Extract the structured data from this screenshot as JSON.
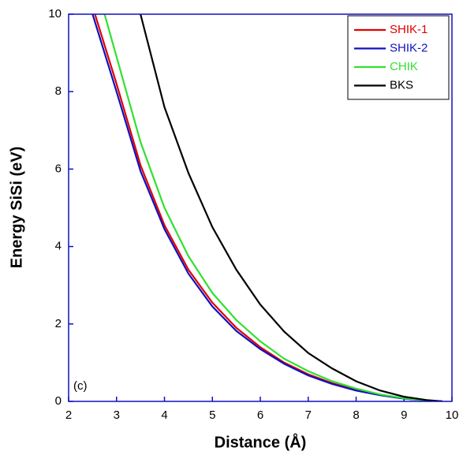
{
  "chart_data": {
    "type": "line",
    "xlabel": "Distance (Å)",
    "ylabel": "Energy SiSi (eV)",
    "annotation": "(c)",
    "xlim": [
      2,
      10
    ],
    "xticks": [
      2,
      3,
      4,
      5,
      6,
      7,
      8,
      9,
      10
    ],
    "ylim": [
      0,
      10
    ],
    "yticks": [
      0,
      2,
      4,
      6,
      8,
      10
    ],
    "legend": "upper right",
    "series": [
      {
        "name": "SHIK-1",
        "color": "#e00000",
        "x": [
          2.55,
          3,
          3.5,
          4,
          4.5,
          5,
          5.5,
          6,
          6.5,
          7,
          7.5,
          8,
          8.5,
          9,
          9.5,
          9.8
        ],
        "values": [
          10,
          8.2,
          6.1,
          4.55,
          3.4,
          2.55,
          1.9,
          1.4,
          1.0,
          0.7,
          0.47,
          0.3,
          0.17,
          0.08,
          0.02,
          0
        ]
      },
      {
        "name": "SHIK-2",
        "color": "#1010c0",
        "x": [
          2.5,
          3,
          3.5,
          4,
          4.5,
          5,
          5.5,
          6,
          6.5,
          7,
          7.5,
          8,
          8.5,
          9,
          9.5,
          9.8
        ],
        "values": [
          10,
          8.0,
          5.95,
          4.45,
          3.3,
          2.45,
          1.82,
          1.35,
          0.97,
          0.67,
          0.45,
          0.28,
          0.16,
          0.07,
          0.02,
          0
        ]
      },
      {
        "name": "CHIK",
        "color": "#30e030",
        "x": [
          2.75,
          3,
          3.5,
          4,
          4.5,
          5,
          5.5,
          6,
          6.5,
          7,
          7.5,
          8,
          8.5,
          9,
          9.5,
          9.7
        ],
        "values": [
          10,
          8.9,
          6.7,
          5.0,
          3.75,
          2.8,
          2.1,
          1.55,
          1.1,
          0.78,
          0.52,
          0.33,
          0.18,
          0.08,
          0.02,
          0
        ]
      },
      {
        "name": "BKS",
        "color": "#000000",
        "x": [
          3.5,
          4,
          4.5,
          5,
          5.5,
          6,
          6.5,
          7,
          7.5,
          8,
          8.5,
          9,
          9.5,
          9.8
        ],
        "values": [
          10,
          7.6,
          5.9,
          4.5,
          3.4,
          2.5,
          1.8,
          1.25,
          0.85,
          0.52,
          0.28,
          0.12,
          0.03,
          0
        ]
      }
    ]
  }
}
